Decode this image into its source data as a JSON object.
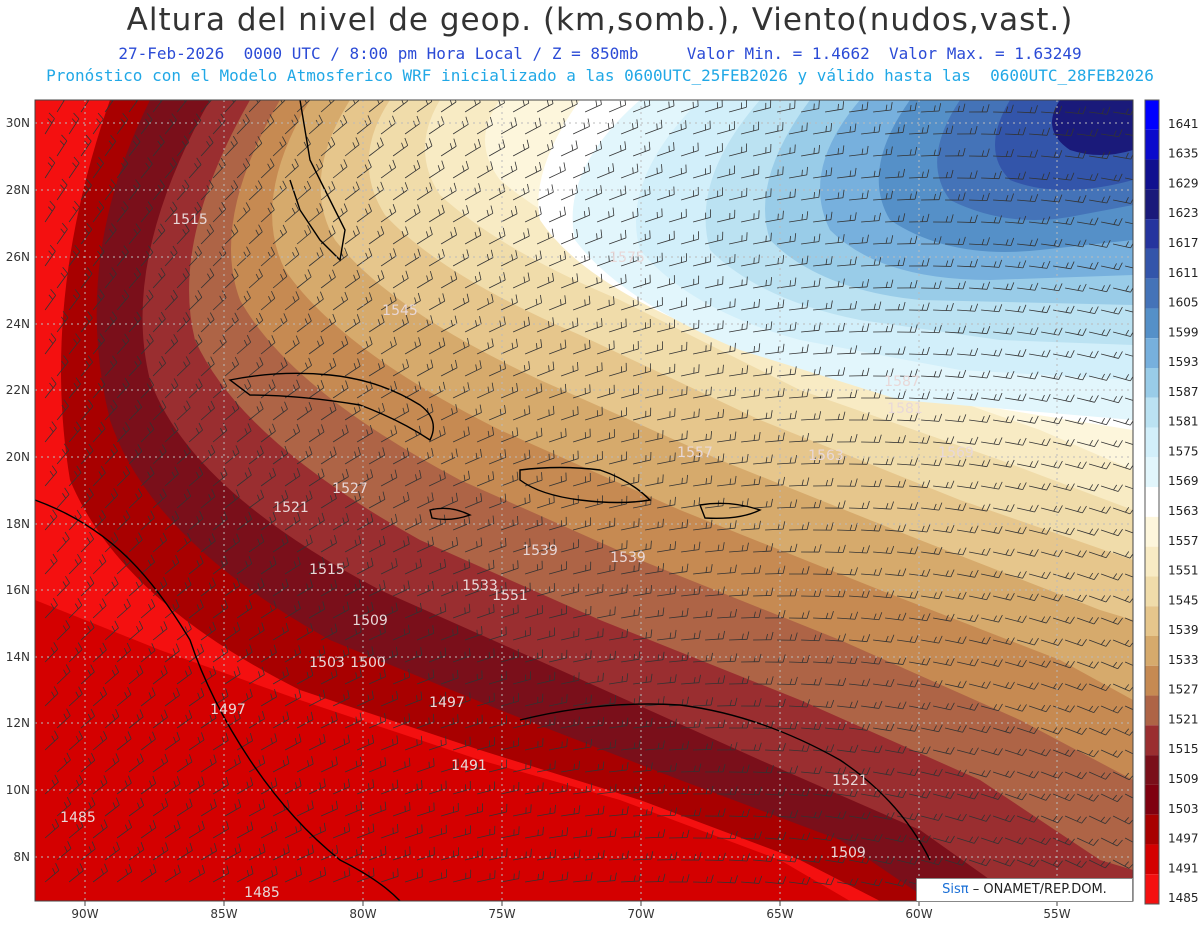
{
  "header": {
    "title": "Altura del nivel de geop. (km,somb.), Viento(nudos,vast.)",
    "date": "27-Feb-2026",
    "time": "0000 UTC / 8:00 pm Hora Local",
    "level": "Z = 850mb",
    "min_label": "Valor Min. = 1.4662",
    "max_label": "Valor Max. = 1.63249",
    "forecast": "Pronóstico con el Modelo Atmosferico WRF inicializado a las 0600UTC_25FEB2026 y válido hasta las  0600UTC_28FEB2026"
  },
  "axes": {
    "lon_labels": [
      "90W",
      "85W",
      "80W",
      "75W",
      "70W",
      "65W",
      "60W",
      "55W"
    ],
    "lat_labels": [
      "30N",
      "28N",
      "26N",
      "24N",
      "22N",
      "20N",
      "18N",
      "16N",
      "14N",
      "12N",
      "10N",
      "8N"
    ]
  },
  "colorbar": {
    "levels": [
      "1641",
      "1635",
      "1629",
      "1623",
      "1617",
      "1611",
      "1605",
      "1599",
      "1593",
      "1587",
      "1581",
      "1575",
      "1569",
      "1563",
      "1557",
      "1551",
      "1545",
      "1539",
      "1533",
      "1527",
      "1521",
      "1515",
      "1509",
      "1503",
      "1497",
      "1491",
      "1485"
    ],
    "colors": [
      "#0000ff",
      "#0a0acc",
      "#10108f",
      "#1a1a7a",
      "#25349e",
      "#3355aa",
      "#4473b8",
      "#5590c8",
      "#77b0dd",
      "#99cce8",
      "#bbe2f2",
      "#d2effa",
      "#e2f6fc",
      "#ffffff",
      "#fdf6dc",
      "#f8ebc4",
      "#f0dcaa",
      "#e6c68c",
      "#d6aa6c",
      "#c68a52",
      "#ae6446",
      "#9a2e30",
      "#7a0f1a",
      "#7f0010",
      "#a80000",
      "#d40000",
      "#f41010"
    ]
  },
  "contour_labels": [
    "1515",
    "1521",
    "1515",
    "1509",
    "1503",
    "1500",
    "1497",
    "1497",
    "1491",
    "1485",
    "1485",
    "1527",
    "1533",
    "1539",
    "1545",
    "1551",
    "1557",
    "1563",
    "1569",
    "1575",
    "1581",
    "1521",
    "1509",
    "1587",
    "1539"
  ],
  "credit": {
    "brand": "Sisπ",
    "text": "– ONAMET/REP.DOM."
  }
}
